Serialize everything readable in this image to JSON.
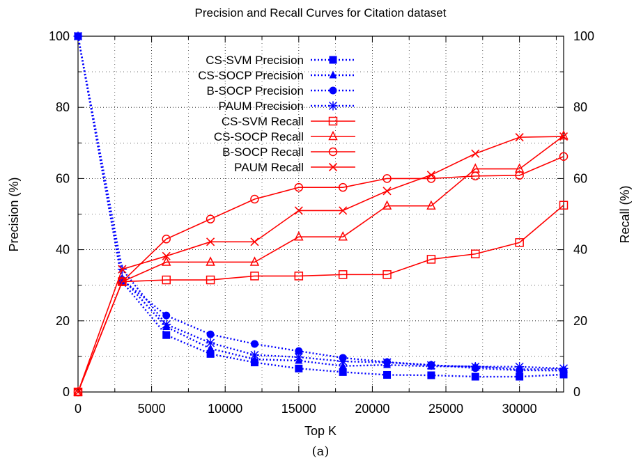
{
  "chart_data": {
    "type": "line",
    "title": "Precision and Recall Curves for Citation dataset",
    "xlabel": "Top K",
    "ylabel": "Precision (%)",
    "y2label": "Recall (%)",
    "caption": "(a)",
    "xlim": [
      0,
      33000
    ],
    "ylim": [
      0,
      100
    ],
    "y2lim": [
      0,
      100
    ],
    "xticks": [
      0,
      5000,
      10000,
      15000,
      20000,
      25000,
      30000
    ],
    "yticks": [
      0,
      20,
      40,
      60,
      80,
      100
    ],
    "y2ticks": [
      0,
      20,
      40,
      60,
      80,
      100
    ],
    "grid": true,
    "legend_position": "top-center",
    "x": [
      0,
      3000,
      6000,
      9000,
      12000,
      15000,
      18000,
      21000,
      24000,
      27000,
      30000,
      33000
    ],
    "series": [
      {
        "name": "CS-SVM Precision",
        "axis": "left",
        "color": "#0000ff",
        "line": "dotted",
        "marker": "square-filled",
        "values": [
          100,
          31,
          16,
          10.7,
          8.3,
          6.6,
          5.6,
          4.8,
          4.7,
          4.3,
          4.3,
          4.9
        ]
      },
      {
        "name": "CS-SOCP Precision",
        "axis": "left",
        "color": "#0000ff",
        "line": "dotted",
        "marker": "triangle-filled",
        "values": [
          100,
          32,
          18.3,
          12.2,
          9.2,
          8.8,
          7.3,
          7.6,
          7.2,
          7.2,
          6.4,
          6.4
        ]
      },
      {
        "name": "B-SOCP Precision",
        "axis": "left",
        "color": "#0000ff",
        "line": "dotted",
        "marker": "circle-filled",
        "values": [
          100,
          31.5,
          21.5,
          16.2,
          13.5,
          11.5,
          9.6,
          8.4,
          7.6,
          6.7,
          6.1,
          6
        ]
      },
      {
        "name": "PAUM Precision",
        "axis": "left",
        "color": "#0000ff",
        "line": "dotted",
        "marker": "asterisk",
        "values": [
          100,
          34.5,
          19,
          13.8,
          10.4,
          9.8,
          8.6,
          8.3,
          7.5,
          7.1,
          7.1,
          6.6
        ]
      },
      {
        "name": "CS-SVM Recall",
        "axis": "right",
        "color": "#ff0000",
        "line": "solid",
        "marker": "square-open",
        "values": [
          0,
          31,
          31.5,
          31.5,
          32.6,
          32.6,
          33,
          33,
          37.3,
          38.8,
          42,
          52.5
        ]
      },
      {
        "name": "CS-SOCP Recall",
        "axis": "right",
        "color": "#ff0000",
        "line": "solid",
        "marker": "triangle-open",
        "values": [
          0,
          31,
          36.5,
          36.5,
          36.5,
          43.6,
          43.6,
          52.3,
          52.3,
          62.7,
          62.7,
          72
        ]
      },
      {
        "name": "B-SOCP Recall",
        "axis": "right",
        "color": "#ff0000",
        "line": "solid",
        "marker": "circle-open",
        "values": [
          0,
          31,
          43,
          48.6,
          54.2,
          57.5,
          57.5,
          60,
          60,
          60.7,
          60.9,
          66.2
        ]
      },
      {
        "name": "PAUM Recall",
        "axis": "right",
        "color": "#ff0000",
        "line": "solid",
        "marker": "x",
        "values": [
          0,
          34.5,
          38.2,
          42.2,
          42.2,
          51,
          51,
          56.5,
          61,
          67,
          71.6,
          71.8
        ]
      }
    ]
  }
}
